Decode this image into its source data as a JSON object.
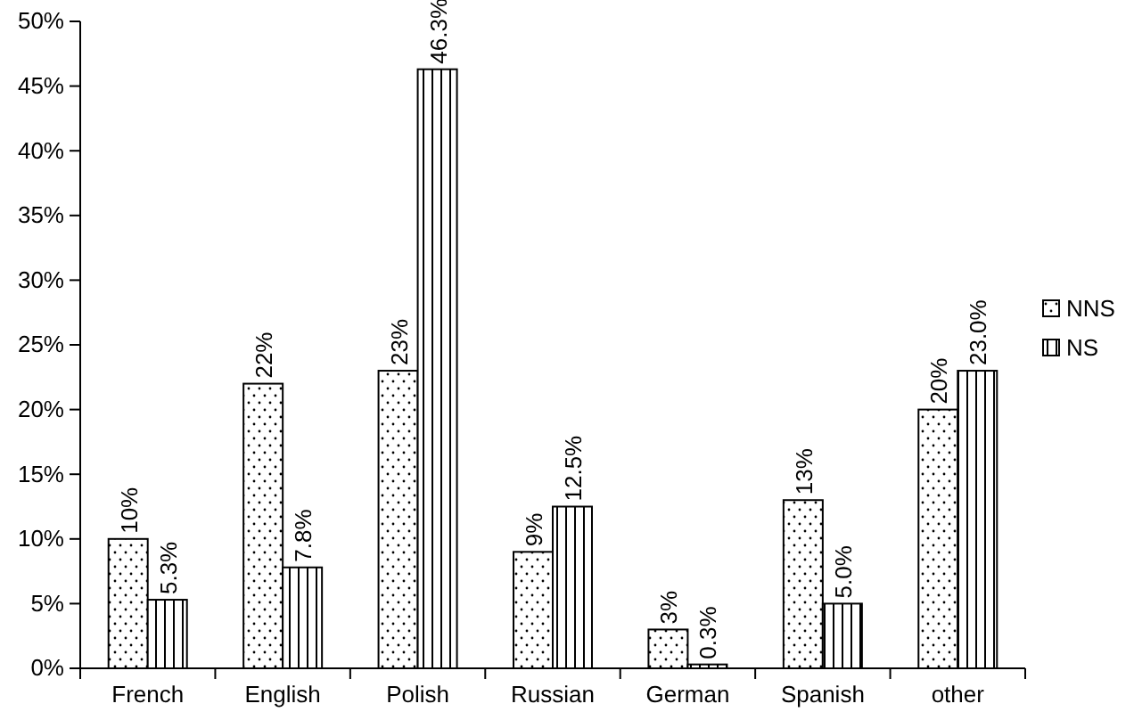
{
  "chart_data": {
    "type": "bar",
    "categories": [
      "French",
      "English",
      "Polish",
      "Russian",
      "German",
      "Spanish",
      "other"
    ],
    "series": [
      {
        "name": "NNS",
        "color": "#000000",
        "values": [
          10,
          22,
          23,
          9,
          3,
          13,
          20
        ],
        "value_labels": [
          "10%",
          "22%",
          "23%",
          "9%",
          "3%",
          "13%",
          "20%"
        ]
      },
      {
        "name": "NS",
        "color": "#000000",
        "values": [
          5.3,
          7.8,
          46.3,
          12.5,
          0.3,
          5.0,
          23.0
        ],
        "value_labels": [
          "5.3%",
          "7.8%",
          "46.3%",
          "12.5%",
          "0.3%",
          "5.0%",
          "23.0%"
        ]
      }
    ],
    "ylim": [
      0,
      50
    ],
    "yticks": [
      {
        "value": 0,
        "label": "0%"
      },
      {
        "value": 5,
        "label": "5%"
      },
      {
        "value": 10,
        "label": "10%"
      },
      {
        "value": 15,
        "label": "15%"
      },
      {
        "value": 20,
        "label": "20%"
      },
      {
        "value": 25,
        "label": "25%"
      },
      {
        "value": 30,
        "label": "30%"
      },
      {
        "value": 35,
        "label": "35%"
      },
      {
        "value": 40,
        "label": "40%"
      },
      {
        "value": 45,
        "label": "45%"
      },
      {
        "value": 50,
        "label": "50%"
      }
    ],
    "grid": false,
    "legend": "right"
  }
}
